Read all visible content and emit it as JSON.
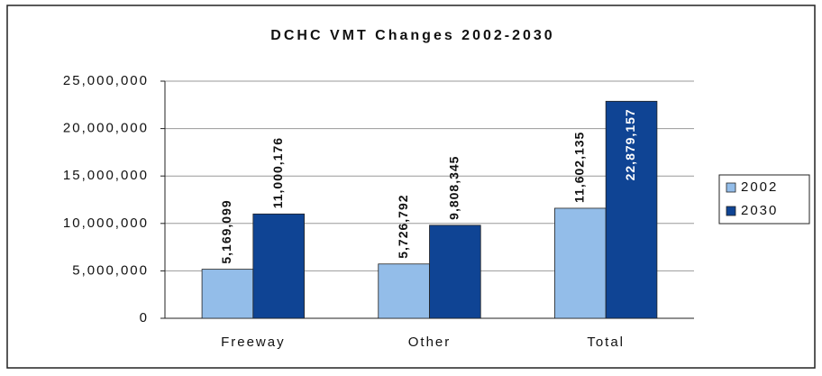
{
  "chart_data": {
    "type": "bar",
    "title": "DCHC VMT Changes 2002-2030",
    "categories": [
      "Freeway",
      "Other",
      "Total"
    ],
    "series": [
      {
        "name": "2002",
        "color": "#93bde9",
        "values": [
          5169099,
          5726792,
          11602135
        ],
        "value_labels": [
          "5,169,099",
          "5,726,792",
          "11,602,135"
        ]
      },
      {
        "name": "2030",
        "color": "#0f4494",
        "values": [
          11000176,
          9808345,
          22879157
        ],
        "value_labels": [
          "11,000,176",
          "9,808,345",
          "22,879,157"
        ]
      }
    ],
    "ylim": [
      0,
      25000000
    ],
    "yticks": [
      0,
      {
        "value": 5000000,
        "label": "5,000,000"
      },
      {
        "value": 10000000,
        "label": "10,000,000"
      },
      {
        "value": 15000000,
        "label": "15,000,000"
      },
      {
        "value": 20000000,
        "label": "20,000,000"
      },
      {
        "value": 25000000,
        "label": "25,000,000"
      }
    ],
    "grid": true,
    "legend": "right"
  }
}
